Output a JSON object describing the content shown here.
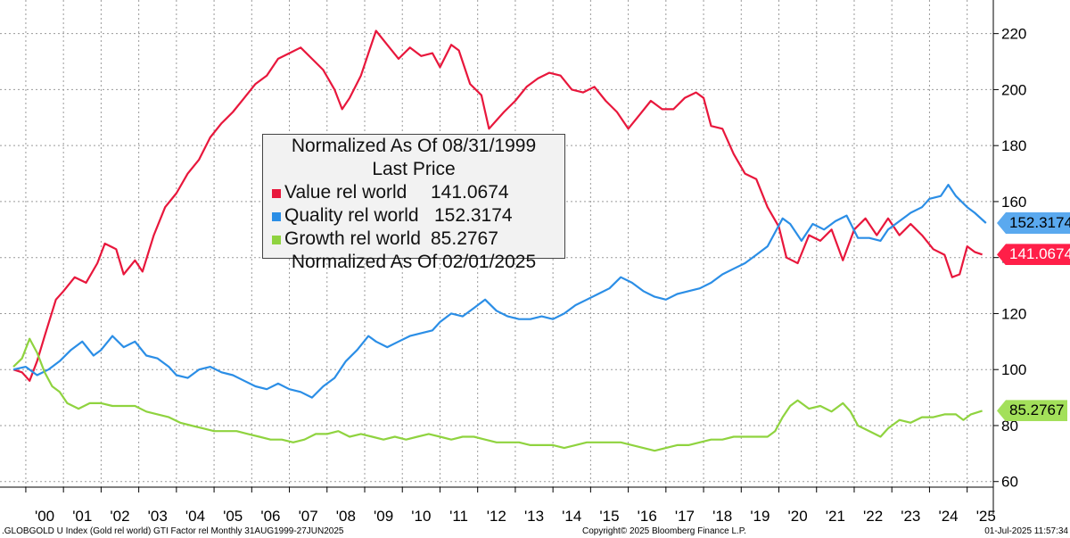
{
  "chart_data": {
    "type": "line",
    "title": "Normalized As Of 08/31/1999",
    "subtitle": "Last Price",
    "note": "Normalized As Of 02/01/2025",
    "ylim": [
      58,
      232
    ],
    "yticks": [
      60,
      80,
      100,
      120,
      140,
      160,
      180,
      200,
      220
    ],
    "xlim": [
      1999.67,
      2025.6
    ],
    "xticks": [
      "'00",
      "'01",
      "'02",
      "'03",
      "'04",
      "'05",
      "'06",
      "'07",
      "'08",
      "'09",
      "'10",
      "'11",
      "'12",
      "'13",
      "'14",
      "'15",
      "'16",
      "'17",
      "'18",
      "'19",
      "'20",
      "'21",
      "'22",
      "'23",
      "'24",
      "'25"
    ],
    "grid": true,
    "legend_position": "upper-center",
    "series": [
      {
        "name": "Value rel world",
        "last_value": "141.0674",
        "color": "#e8173c",
        "points": [
          [
            1999.67,
            100
          ],
          [
            1999.9,
            99
          ],
          [
            2000.1,
            96
          ],
          [
            2000.3,
            103
          ],
          [
            2000.5,
            112
          ],
          [
            2000.8,
            125
          ],
          [
            2001.0,
            128
          ],
          [
            2001.3,
            133
          ],
          [
            2001.6,
            131
          ],
          [
            2001.9,
            138
          ],
          [
            2002.1,
            145
          ],
          [
            2002.4,
            143
          ],
          [
            2002.6,
            134
          ],
          [
            2002.9,
            139
          ],
          [
            2003.1,
            135
          ],
          [
            2003.4,
            148
          ],
          [
            2003.7,
            158
          ],
          [
            2004.0,
            163
          ],
          [
            2004.3,
            170
          ],
          [
            2004.6,
            175
          ],
          [
            2004.9,
            183
          ],
          [
            2005.2,
            188
          ],
          [
            2005.5,
            192
          ],
          [
            2005.8,
            197
          ],
          [
            2006.1,
            202
          ],
          [
            2006.4,
            205
          ],
          [
            2006.7,
            211
          ],
          [
            2007.0,
            213
          ],
          [
            2007.3,
            215
          ],
          [
            2007.6,
            211
          ],
          [
            2007.9,
            207
          ],
          [
            2008.2,
            200
          ],
          [
            2008.4,
            193
          ],
          [
            2008.6,
            197
          ],
          [
            2008.9,
            205
          ],
          [
            2009.1,
            213
          ],
          [
            2009.3,
            221
          ],
          [
            2009.6,
            216
          ],
          [
            2009.9,
            211
          ],
          [
            2010.2,
            215
          ],
          [
            2010.5,
            212
          ],
          [
            2010.8,
            213
          ],
          [
            2011.0,
            208
          ],
          [
            2011.3,
            216
          ],
          [
            2011.5,
            214
          ],
          [
            2011.8,
            202
          ],
          [
            2012.1,
            198
          ],
          [
            2012.3,
            186
          ],
          [
            2012.5,
            189
          ],
          [
            2012.7,
            192
          ],
          [
            2013.0,
            196
          ],
          [
            2013.3,
            201
          ],
          [
            2013.6,
            204
          ],
          [
            2013.9,
            206
          ],
          [
            2014.2,
            205
          ],
          [
            2014.5,
            200
          ],
          [
            2014.8,
            199
          ],
          [
            2015.1,
            201
          ],
          [
            2015.4,
            196
          ],
          [
            2015.7,
            192
          ],
          [
            2016.0,
            186
          ],
          [
            2016.3,
            191
          ],
          [
            2016.6,
            196
          ],
          [
            2016.9,
            193
          ],
          [
            2017.2,
            193
          ],
          [
            2017.5,
            197
          ],
          [
            2017.8,
            199
          ],
          [
            2018.0,
            197
          ],
          [
            2018.2,
            187
          ],
          [
            2018.5,
            186
          ],
          [
            2018.8,
            177
          ],
          [
            2019.1,
            170
          ],
          [
            2019.4,
            168
          ],
          [
            2019.7,
            158
          ],
          [
            2020.0,
            151
          ],
          [
            2020.2,
            140
          ],
          [
            2020.5,
            138
          ],
          [
            2020.8,
            148
          ],
          [
            2021.1,
            146
          ],
          [
            2021.4,
            150
          ],
          [
            2021.7,
            139
          ],
          [
            2022.0,
            150
          ],
          [
            2022.3,
            154
          ],
          [
            2022.6,
            148
          ],
          [
            2022.9,
            154
          ],
          [
            2023.2,
            148
          ],
          [
            2023.5,
            152
          ],
          [
            2023.8,
            148
          ],
          [
            2024.1,
            143
          ],
          [
            2024.4,
            141
          ],
          [
            2024.6,
            133
          ],
          [
            2024.8,
            134
          ],
          [
            2025.0,
            144
          ],
          [
            2025.2,
            142
          ],
          [
            2025.4,
            141.0674
          ]
        ]
      },
      {
        "name": "Quality rel world",
        "last_value": "152.3174",
        "color": "#2b8ee6",
        "points": [
          [
            1999.67,
            100
          ],
          [
            2000.0,
            101
          ],
          [
            2000.3,
            98
          ],
          [
            2000.6,
            100
          ],
          [
            2000.9,
            103
          ],
          [
            2001.2,
            107
          ],
          [
            2001.5,
            110
          ],
          [
            2001.8,
            105
          ],
          [
            2002.0,
            107
          ],
          [
            2002.3,
            112
          ],
          [
            2002.6,
            108
          ],
          [
            2002.9,
            110
          ],
          [
            2003.2,
            105
          ],
          [
            2003.5,
            104
          ],
          [
            2003.8,
            101
          ],
          [
            2004.0,
            98
          ],
          [
            2004.3,
            97
          ],
          [
            2004.6,
            100
          ],
          [
            2004.9,
            101
          ],
          [
            2005.2,
            99
          ],
          [
            2005.5,
            98
          ],
          [
            2005.8,
            96
          ],
          [
            2006.1,
            94
          ],
          [
            2006.4,
            93
          ],
          [
            2006.7,
            95
          ],
          [
            2007.0,
            93
          ],
          [
            2007.3,
            92
          ],
          [
            2007.6,
            90
          ],
          [
            2007.9,
            94
          ],
          [
            2008.2,
            97
          ],
          [
            2008.5,
            103
          ],
          [
            2008.8,
            107
          ],
          [
            2009.1,
            112
          ],
          [
            2009.3,
            110
          ],
          [
            2009.6,
            108
          ],
          [
            2009.9,
            110
          ],
          [
            2010.2,
            112
          ],
          [
            2010.5,
            113
          ],
          [
            2010.8,
            114
          ],
          [
            2011.0,
            117
          ],
          [
            2011.3,
            120
          ],
          [
            2011.6,
            119
          ],
          [
            2011.9,
            122
          ],
          [
            2012.2,
            125
          ],
          [
            2012.5,
            121
          ],
          [
            2012.8,
            119
          ],
          [
            2013.1,
            118
          ],
          [
            2013.4,
            118
          ],
          [
            2013.7,
            119
          ],
          [
            2014.0,
            118
          ],
          [
            2014.3,
            120
          ],
          [
            2014.6,
            123
          ],
          [
            2014.9,
            125
          ],
          [
            2015.2,
            127
          ],
          [
            2015.5,
            129
          ],
          [
            2015.8,
            133
          ],
          [
            2016.1,
            131
          ],
          [
            2016.4,
            128
          ],
          [
            2016.7,
            126
          ],
          [
            2017.0,
            125
          ],
          [
            2017.3,
            127
          ],
          [
            2017.6,
            128
          ],
          [
            2017.9,
            129
          ],
          [
            2018.2,
            131
          ],
          [
            2018.5,
            134
          ],
          [
            2018.8,
            136
          ],
          [
            2019.1,
            138
          ],
          [
            2019.4,
            141
          ],
          [
            2019.7,
            144
          ],
          [
            2019.9,
            149
          ],
          [
            2020.1,
            154
          ],
          [
            2020.3,
            152
          ],
          [
            2020.6,
            146
          ],
          [
            2020.9,
            152
          ],
          [
            2021.2,
            150
          ],
          [
            2021.5,
            153
          ],
          [
            2021.8,
            155
          ],
          [
            2022.1,
            147
          ],
          [
            2022.4,
            147
          ],
          [
            2022.7,
            146
          ],
          [
            2022.9,
            150
          ],
          [
            2023.2,
            153
          ],
          [
            2023.5,
            156
          ],
          [
            2023.8,
            158
          ],
          [
            2024.0,
            161
          ],
          [
            2024.3,
            162
          ],
          [
            2024.5,
            166
          ],
          [
            2024.7,
            162
          ],
          [
            2025.0,
            158
          ],
          [
            2025.2,
            156
          ],
          [
            2025.5,
            152.3174
          ]
        ]
      },
      {
        "name": "Growth rel world",
        "last_value": "85.2767",
        "color": "#8fd33f",
        "points": [
          [
            1999.67,
            101
          ],
          [
            1999.9,
            104
          ],
          [
            2000.1,
            111
          ],
          [
            2000.3,
            106
          ],
          [
            2000.5,
            99
          ],
          [
            2000.7,
            94
          ],
          [
            2000.9,
            92
          ],
          [
            2001.1,
            88
          ],
          [
            2001.4,
            86
          ],
          [
            2001.7,
            88
          ],
          [
            2002.0,
            88
          ],
          [
            2002.3,
            87
          ],
          [
            2002.6,
            87
          ],
          [
            2002.9,
            87
          ],
          [
            2003.2,
            85
          ],
          [
            2003.5,
            84
          ],
          [
            2003.8,
            83
          ],
          [
            2004.1,
            81
          ],
          [
            2004.4,
            80
          ],
          [
            2004.7,
            79
          ],
          [
            2005.0,
            78
          ],
          [
            2005.3,
            78
          ],
          [
            2005.6,
            78
          ],
          [
            2005.9,
            77
          ],
          [
            2006.2,
            76
          ],
          [
            2006.5,
            75
          ],
          [
            2006.8,
            75
          ],
          [
            2007.1,
            74
          ],
          [
            2007.4,
            75
          ],
          [
            2007.7,
            77
          ],
          [
            2008.0,
            77
          ],
          [
            2008.3,
            78
          ],
          [
            2008.6,
            76
          ],
          [
            2008.9,
            77
          ],
          [
            2009.2,
            76
          ],
          [
            2009.5,
            75
          ],
          [
            2009.8,
            76
          ],
          [
            2010.1,
            75
          ],
          [
            2010.4,
            76
          ],
          [
            2010.7,
            77
          ],
          [
            2011.0,
            76
          ],
          [
            2011.3,
            75
          ],
          [
            2011.6,
            76
          ],
          [
            2011.9,
            76
          ],
          [
            2012.2,
            75
          ],
          [
            2012.5,
            74
          ],
          [
            2012.8,
            74
          ],
          [
            2013.1,
            74
          ],
          [
            2013.4,
            73
          ],
          [
            2013.7,
            73
          ],
          [
            2014.0,
            73
          ],
          [
            2014.3,
            72
          ],
          [
            2014.6,
            73
          ],
          [
            2014.9,
            74
          ],
          [
            2015.2,
            74
          ],
          [
            2015.5,
            74
          ],
          [
            2015.8,
            74
          ],
          [
            2016.1,
            73
          ],
          [
            2016.4,
            72
          ],
          [
            2016.7,
            71
          ],
          [
            2017.0,
            72
          ],
          [
            2017.3,
            73
          ],
          [
            2017.6,
            73
          ],
          [
            2017.9,
            74
          ],
          [
            2018.2,
            75
          ],
          [
            2018.5,
            75
          ],
          [
            2018.8,
            76
          ],
          [
            2019.1,
            76
          ],
          [
            2019.4,
            76
          ],
          [
            2019.7,
            76
          ],
          [
            2019.9,
            78
          ],
          [
            2020.1,
            83
          ],
          [
            2020.3,
            87
          ],
          [
            2020.5,
            89
          ],
          [
            2020.8,
            86
          ],
          [
            2021.1,
            87
          ],
          [
            2021.4,
            85
          ],
          [
            2021.7,
            88
          ],
          [
            2021.9,
            85
          ],
          [
            2022.1,
            80
          ],
          [
            2022.4,
            78
          ],
          [
            2022.7,
            76
          ],
          [
            2022.9,
            79
          ],
          [
            2023.2,
            82
          ],
          [
            2023.5,
            81
          ],
          [
            2023.8,
            83
          ],
          [
            2024.1,
            83
          ],
          [
            2024.4,
            84
          ],
          [
            2024.7,
            84
          ],
          [
            2024.9,
            82
          ],
          [
            2025.1,
            84
          ],
          [
            2025.4,
            85.2767
          ]
        ]
      }
    ]
  },
  "footer": {
    "left": ".GLOBGOLD U Index (Gold rel world) GTI Factor rel  Monthly 31AUG1999-27JUN2025",
    "center": "Copyright© 2025 Bloomberg Finance L.P.",
    "right": "01-Jul-2025 11:57:34"
  }
}
